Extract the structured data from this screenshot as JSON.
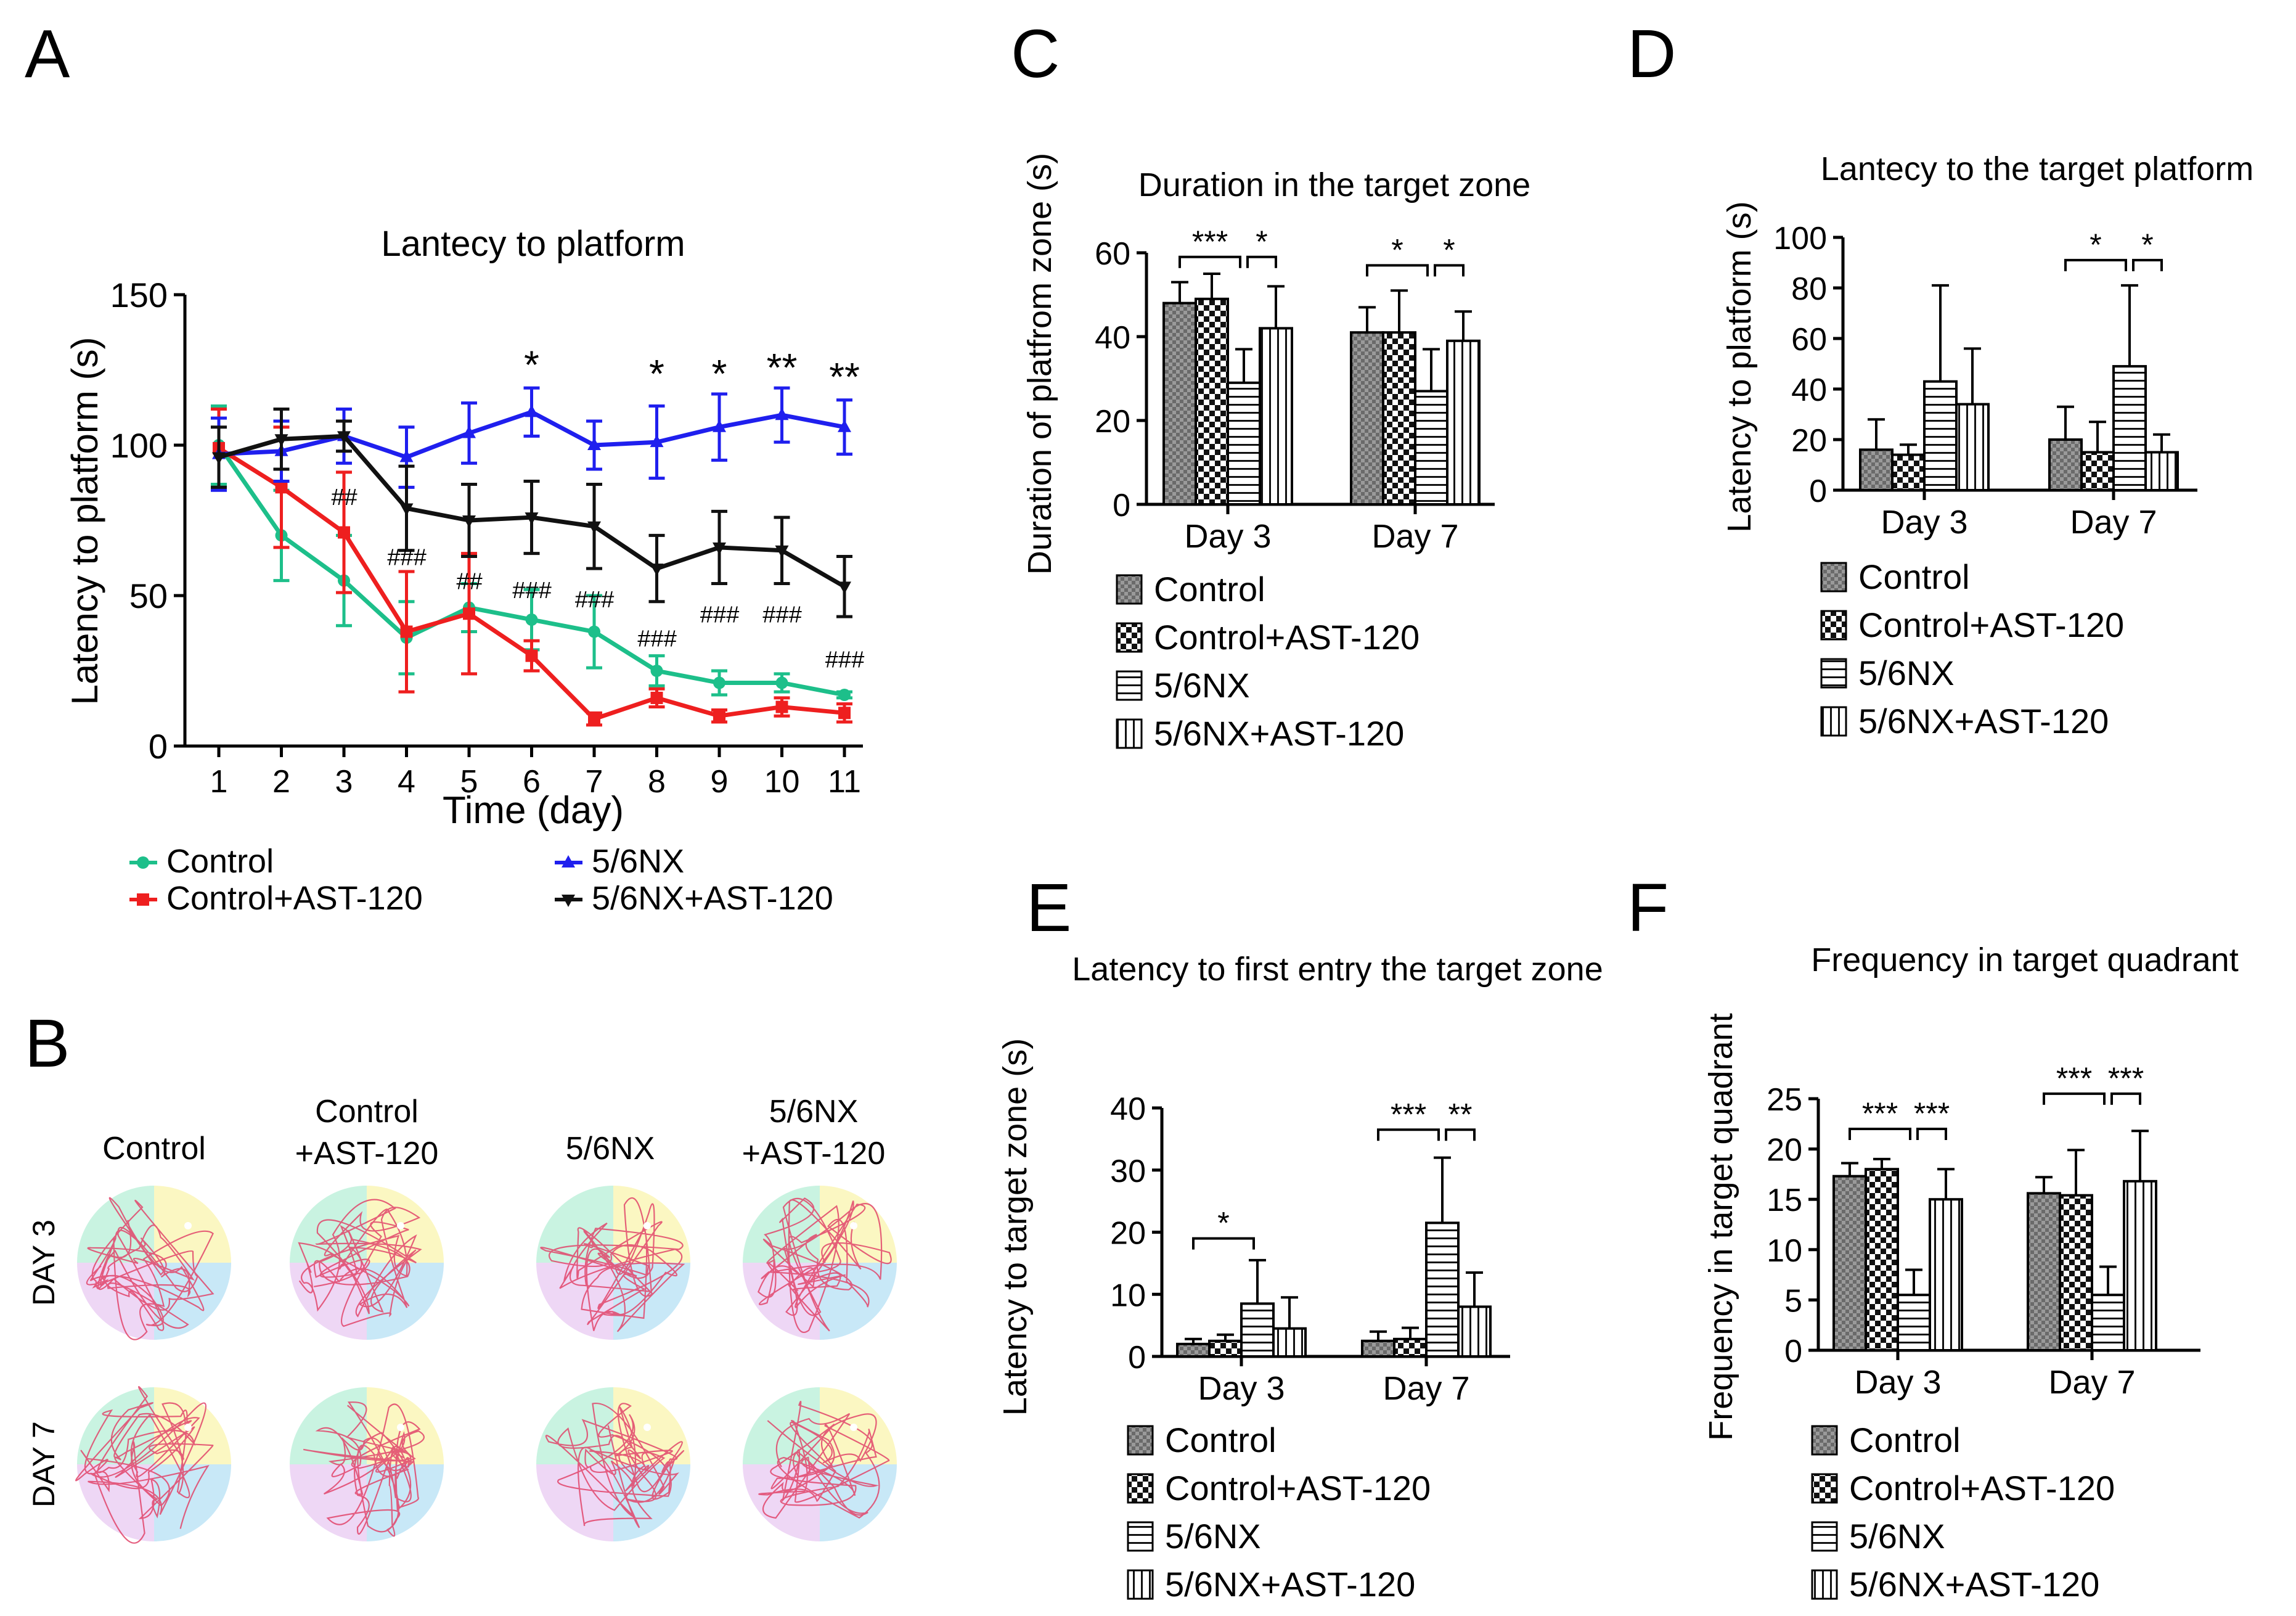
{
  "panel_labels": {
    "A": "A",
    "B": "B",
    "C": "C",
    "D": "D",
    "E": "E",
    "F": "F"
  },
  "series_colors": {
    "Control": "#1dbf8a",
    "Control+AST-120": "#ee1f1f",
    "5/6NX": "#1f1fee",
    "5/6NX+AST-120": "#111111"
  },
  "bar_legend": [
    "Control",
    "Control+AST-120",
    "5/6NX",
    "5/6NX+AST-120"
  ],
  "chart_data": [
    {
      "id": "A",
      "type": "line",
      "title": "Lantecy to platform",
      "xlabel": "Time (day)",
      "ylabel": "Latency to platform  (s)",
      "ylim": [
        0,
        150
      ],
      "yticks": [
        0,
        50,
        100,
        150
      ],
      "x": [
        1,
        2,
        3,
        4,
        5,
        6,
        7,
        8,
        9,
        10,
        11
      ],
      "series": [
        {
          "name": "Control",
          "values": [
            100,
            70,
            55,
            36,
            46,
            42,
            38,
            25,
            21,
            21,
            17
          ],
          "err": [
            13,
            15,
            15,
            12,
            8,
            10,
            12,
            5,
            4,
            3,
            1
          ]
        },
        {
          "name": "Control+AST-120",
          "values": [
            99,
            86,
            71,
            38,
            44,
            30,
            9,
            16,
            10,
            13,
            11
          ],
          "err": [
            13,
            20,
            20,
            20,
            20,
            5,
            2,
            3,
            2,
            3,
            3
          ]
        },
        {
          "name": "5/6NX",
          "values": [
            97,
            98,
            103,
            96,
            104,
            111,
            100,
            101,
            106,
            110,
            106
          ],
          "err": [
            12,
            10,
            9,
            10,
            10,
            8,
            8,
            12,
            11,
            9,
            9
          ]
        },
        {
          "name": "5/6NX+AST-120",
          "values": [
            96,
            102,
            103,
            79,
            75,
            76,
            73,
            59,
            66,
            65,
            53
          ],
          "err": [
            10,
            10,
            5,
            14,
            12,
            12,
            14,
            11,
            12,
            11,
            10
          ]
        }
      ],
      "annotations": [
        {
          "x": 6,
          "y": 128,
          "text": "*"
        },
        {
          "x": 8,
          "y": 125,
          "text": "*"
        },
        {
          "x": 9,
          "y": 125,
          "text": "*"
        },
        {
          "x": 10,
          "y": 127,
          "text": "**"
        },
        {
          "x": 11,
          "y": 124,
          "text": "**"
        },
        {
          "x": 3,
          "y": 83,
          "text": "##"
        },
        {
          "x": 4,
          "y": 63,
          "text": "###"
        },
        {
          "x": 5,
          "y": 55,
          "text": "##"
        },
        {
          "x": 6,
          "y": 52,
          "text": "###"
        },
        {
          "x": 7,
          "y": 49,
          "text": "###"
        },
        {
          "x": 8,
          "y": 36,
          "text": "###"
        },
        {
          "x": 9,
          "y": 44,
          "text": "###"
        },
        {
          "x": 10,
          "y": 44,
          "text": "###"
        },
        {
          "x": 11,
          "y": 29,
          "text": "###"
        }
      ]
    },
    {
      "id": "C",
      "type": "bar",
      "title": "Duration in the target zone",
      "ylabel": "Duration of platfrom zone (s)",
      "ylim": [
        0,
        60
      ],
      "yticks": [
        0,
        20,
        40,
        60
      ],
      "categories": [
        "Day 3",
        "Day 7"
      ],
      "series": [
        {
          "name": "Control",
          "values": [
            48,
            41
          ],
          "err": [
            5,
            6
          ]
        },
        {
          "name": "Control+AST-120",
          "values": [
            49,
            41
          ],
          "err": [
            6,
            10
          ]
        },
        {
          "name": "5/6NX",
          "values": [
            29,
            27
          ],
          "err": [
            8,
            10
          ]
        },
        {
          "name": "5/6NX+AST-120",
          "values": [
            42,
            39
          ],
          "err": [
            10,
            7
          ]
        }
      ],
      "brackets": [
        {
          "group": 0,
          "from": 0,
          "to": 2,
          "y": 59,
          "text": "***"
        },
        {
          "group": 0,
          "from": 2,
          "to": 3,
          "y": 59,
          "text": "*"
        },
        {
          "group": 1,
          "from": 0,
          "to": 2,
          "y": 57,
          "text": "*"
        },
        {
          "group": 1,
          "from": 2,
          "to": 3,
          "y": 57,
          "text": "*"
        }
      ]
    },
    {
      "id": "D",
      "type": "bar",
      "title": "Lantecy to the target platform",
      "ylabel": "Latency to platform  (s)",
      "ylim": [
        0,
        100
      ],
      "yticks": [
        0,
        20,
        40,
        60,
        80,
        100
      ],
      "categories": [
        "Day 3",
        "Day 7"
      ],
      "series": [
        {
          "name": "Control",
          "values": [
            16,
            20
          ],
          "err": [
            12,
            13
          ]
        },
        {
          "name": "Control+AST-120",
          "values": [
            14,
            15
          ],
          "err": [
            4,
            12
          ]
        },
        {
          "name": "5/6NX",
          "values": [
            43,
            49
          ],
          "err": [
            38,
            32
          ]
        },
        {
          "name": "5/6NX+AST-120",
          "values": [
            34,
            15
          ],
          "err": [
            22,
            7
          ]
        }
      ],
      "brackets": [
        {
          "group": 1,
          "from": 0,
          "to": 2,
          "y": 91,
          "text": "*"
        },
        {
          "group": 1,
          "from": 2,
          "to": 3,
          "y": 91,
          "text": "*"
        }
      ]
    },
    {
      "id": "E",
      "type": "bar",
      "title": "Latency to first entry the target zone",
      "ylabel": "Latency to target zone (s)",
      "ylim": [
        0,
        40
      ],
      "yticks": [
        0,
        10,
        20,
        30,
        40
      ],
      "categories": [
        "Day 3",
        "Day 7"
      ],
      "series": [
        {
          "name": "Control",
          "values": [
            2,
            2.5
          ],
          "err": [
            0.8,
            1.5
          ]
        },
        {
          "name": "Control+AST-120",
          "values": [
            2.5,
            2.8
          ],
          "err": [
            1,
            1.8
          ]
        },
        {
          "name": "5/6NX",
          "values": [
            8.5,
            21.5
          ],
          "err": [
            7,
            10.5
          ]
        },
        {
          "name": "5/6NX+AST-120",
          "values": [
            4.5,
            8
          ],
          "err": [
            5,
            5.5
          ]
        }
      ],
      "brackets": [
        {
          "group": 0,
          "from": 0,
          "to": 2,
          "y": 19,
          "text": "*"
        },
        {
          "group": 1,
          "from": 0,
          "to": 2,
          "y": 36.5,
          "text": "***"
        },
        {
          "group": 1,
          "from": 2,
          "to": 3,
          "y": 36.5,
          "text": "**"
        }
      ]
    },
    {
      "id": "F",
      "type": "bar",
      "title": "Frequency in target quadrant",
      "ylabel": "Frequency in target quadrant",
      "ylim": [
        0,
        25
      ],
      "yticks": [
        0,
        5,
        10,
        15,
        20,
        25
      ],
      "categories": [
        "Day 3",
        "Day 7"
      ],
      "series": [
        {
          "name": "Control",
          "values": [
            17.3,
            15.6
          ],
          "err": [
            1.3,
            1.6
          ]
        },
        {
          "name": "Control+AST-120",
          "values": [
            18,
            15.4
          ],
          "err": [
            1,
            4.5
          ]
        },
        {
          "name": "5/6NX",
          "values": [
            5.5,
            5.5
          ],
          "err": [
            2.5,
            2.8
          ]
        },
        {
          "name": "5/6NX+AST-120",
          "values": [
            15,
            16.8
          ],
          "err": [
            3,
            5
          ]
        }
      ],
      "brackets": [
        {
          "group": 0,
          "from": 0,
          "to": 2,
          "y": 22,
          "text": "***"
        },
        {
          "group": 0,
          "from": 2,
          "to": 3,
          "y": 22,
          "text": "***"
        },
        {
          "group": 1,
          "from": 0,
          "to": 2,
          "y": 25.5,
          "text": "***"
        },
        {
          "group": 1,
          "from": 2,
          "to": 3,
          "y": 25.5,
          "text": "***"
        }
      ]
    }
  ],
  "panel_B": {
    "columns": [
      "Control",
      "Control\n+AST-120",
      "5/6NX",
      "5/6NX\n+AST-120"
    ],
    "rows": [
      "DAY 3",
      "DAY 7"
    ],
    "quadrant_colors": [
      "#c9f3e1",
      "#fbf7c2",
      "#eed7f5",
      "#c8e8f7"
    ],
    "path_color": "#e0446a"
  }
}
